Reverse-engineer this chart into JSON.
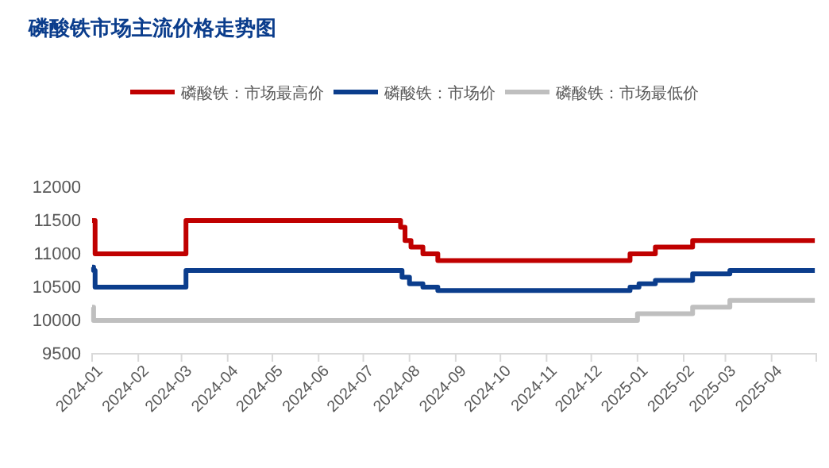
{
  "chart_data": {
    "type": "step",
    "title": "磷酸铁市场主流价格走势图",
    "legend": "top",
    "grid": false,
    "line_style": "solid",
    "marker": "none",
    "xlim": [
      "2024-01",
      "2025-05"
    ],
    "xticks": [
      "2024-01",
      "2024-02",
      "2024-03",
      "2024-04",
      "2024-05",
      "2024-06",
      "2024-07",
      "2024-08",
      "2024-09",
      "2024-10",
      "2024-11",
      "2024-12",
      "2025-01",
      "2025-02",
      "2025-03",
      "2025-04",
      {
        "value": "2025-05",
        "label": null
      }
    ],
    "ylim": [
      9500,
      12000
    ],
    "yticks": [
      9500,
      10000,
      10500,
      11000,
      11500,
      12000
    ],
    "series": [
      {
        "name": "磷酸铁：市场最高价",
        "color": "#c00000",
        "x": [
          "2024-01-01",
          "2024-01-03",
          "2024-03-04",
          "2024-07-26",
          "2024-07-29",
          "2024-08-02",
          "2024-08-10",
          "2024-08-20",
          "2024-12-27",
          "2025-01-13",
          "2025-02-07",
          "2025-04-30"
        ],
        "values": [
          11500,
          11000,
          11500,
          11400,
          11200,
          11100,
          11000,
          10900,
          11000,
          11100,
          11200,
          11200
        ]
      },
      {
        "name": "磷酸铁：市场价",
        "color": "#0b3d8c",
        "x": [
          "2024-01-01",
          "2024-01-02",
          "2024-01-03",
          "2024-03-04",
          "2024-07-27",
          "2024-08-01",
          "2024-08-10",
          "2024-08-20",
          "2024-12-27",
          "2025-01-02",
          "2025-01-13",
          "2025-02-07",
          "2025-03-04",
          "2025-04-30"
        ],
        "values": [
          10800,
          10750,
          10500,
          10750,
          10650,
          10550,
          10500,
          10450,
          10500,
          10550,
          10600,
          10700,
          10750,
          10750
        ]
      },
      {
        "name": "磷酸铁：市场最低价",
        "color": "#bfbfbf",
        "x": [
          "2024-01-01",
          "2024-01-02",
          "2025-01-01",
          "2025-02-07",
          "2025-03-04",
          "2025-04-30"
        ],
        "values": [
          10200,
          10000,
          10100,
          10200,
          10300,
          10300
        ]
      }
    ]
  }
}
